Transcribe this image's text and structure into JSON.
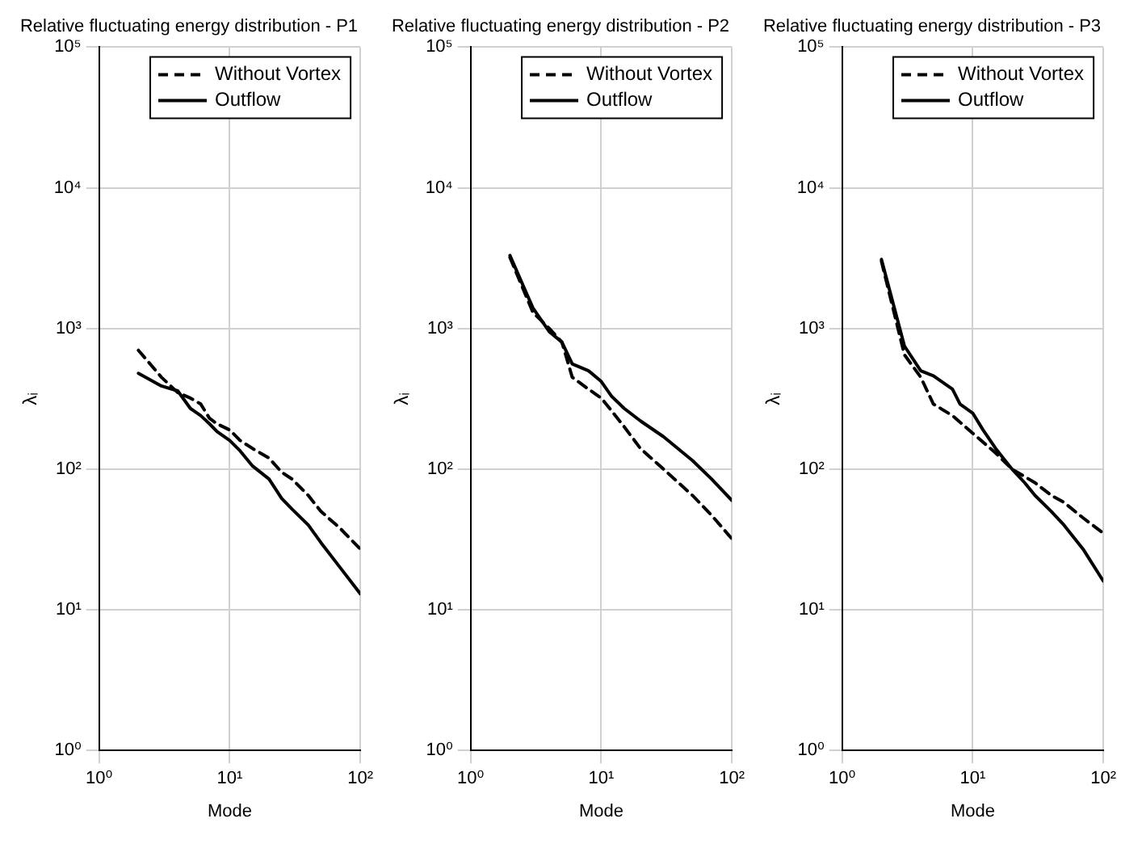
{
  "chart_data": [
    {
      "type": "line",
      "title": "Relative fluctuating energy distribution - P1",
      "xlabel": "Mode",
      "ylabel": "λᵢ",
      "log": "xy",
      "grid": true,
      "legend": "top right",
      "marker": "none",
      "xlim": [
        1,
        100
      ],
      "xticks": [
        {
          "value": 1,
          "label": "10⁰"
        },
        {
          "value": 10,
          "label": "10¹"
        },
        {
          "value": 100,
          "label": "10²"
        }
      ],
      "ylim": [
        1,
        100000
      ],
      "yticks": [
        {
          "value": 1,
          "label": "10⁰"
        },
        {
          "value": 10,
          "label": "10¹"
        },
        {
          "value": 100,
          "label": "10²"
        },
        {
          "value": 1000,
          "label": "10³"
        },
        {
          "value": 10000,
          "label": "10⁴"
        },
        {
          "value": 100000,
          "label": "10⁵"
        }
      ],
      "series": [
        {
          "name": "Without Vortex",
          "color": "#000000",
          "line_style": "dashed",
          "x": [
            2,
            3,
            4,
            5,
            6,
            7,
            8,
            10,
            12,
            15,
            20,
            25,
            30,
            40,
            50,
            70,
            100
          ],
          "values": [
            700,
            450,
            350,
            320,
            290,
            230,
            210,
            190,
            160,
            140,
            120,
            95,
            85,
            65,
            50,
            38,
            27
          ]
        },
        {
          "name": "Outflow",
          "color": "#000000",
          "line_style": "solid",
          "x": [
            2,
            3,
            4,
            5,
            6,
            7,
            8,
            10,
            12,
            15,
            20,
            25,
            30,
            40,
            50,
            70,
            100
          ],
          "values": [
            480,
            390,
            360,
            270,
            240,
            210,
            185,
            160,
            135,
            105,
            85,
            62,
            52,
            40,
            30,
            20,
            13
          ]
        }
      ]
    },
    {
      "type": "line",
      "title": "Relative fluctuating energy distribution - P2",
      "xlabel": "Mode",
      "ylabel": "λᵢ",
      "log": "xy",
      "grid": true,
      "legend": "top right",
      "marker": "none",
      "xlim": [
        1,
        100
      ],
      "xticks": [
        {
          "value": 1,
          "label": "10⁰"
        },
        {
          "value": 10,
          "label": "10¹"
        },
        {
          "value": 100,
          "label": "10²"
        }
      ],
      "ylim": [
        1,
        100000
      ],
      "yticks": [
        {
          "value": 1,
          "label": "10⁰"
        },
        {
          "value": 10,
          "label": "10¹"
        },
        {
          "value": 100,
          "label": "10²"
        },
        {
          "value": 1000,
          "label": "10³"
        },
        {
          "value": 10000,
          "label": "10⁴"
        },
        {
          "value": 100000,
          "label": "10⁵"
        }
      ],
      "series": [
        {
          "name": "Without Vortex",
          "color": "#000000",
          "line_style": "dashed",
          "x": [
            2,
            3,
            4,
            5,
            6,
            8,
            10,
            12,
            15,
            20,
            30,
            50,
            70,
            100
          ],
          "values": [
            3200,
            1300,
            1000,
            800,
            450,
            370,
            320,
            260,
            200,
            140,
            100,
            65,
            47,
            32
          ]
        },
        {
          "name": "Outflow",
          "color": "#000000",
          "line_style": "solid",
          "x": [
            2,
            3,
            4,
            5,
            6,
            8,
            10,
            12,
            15,
            20,
            30,
            50,
            70,
            100
          ],
          "values": [
            3300,
            1400,
            950,
            800,
            560,
            500,
            420,
            330,
            270,
            220,
            170,
            115,
            85,
            60
          ]
        }
      ]
    },
    {
      "type": "line",
      "title": "Relative fluctuating energy distribution - P3",
      "xlabel": "Mode",
      "ylabel": "λᵢ",
      "log": "xy",
      "grid": true,
      "legend": "top right",
      "marker": "none",
      "xlim": [
        1,
        100
      ],
      "xticks": [
        {
          "value": 1,
          "label": "10⁰"
        },
        {
          "value": 10,
          "label": "10¹"
        },
        {
          "value": 100,
          "label": "10²"
        }
      ],
      "ylim": [
        1,
        100000
      ],
      "yticks": [
        {
          "value": 1,
          "label": "10⁰"
        },
        {
          "value": 10,
          "label": "10¹"
        },
        {
          "value": 100,
          "label": "10²"
        },
        {
          "value": 1000,
          "label": "10³"
        },
        {
          "value": 10000,
          "label": "10⁴"
        },
        {
          "value": 100000,
          "label": "10⁵"
        }
      ],
      "series": [
        {
          "name": "Without Vortex",
          "color": "#000000",
          "line_style": "dashed",
          "x": [
            2,
            3,
            4,
            5,
            7,
            10,
            15,
            20,
            30,
            40,
            50,
            70,
            100
          ],
          "values": [
            3000,
            650,
            450,
            290,
            240,
            180,
            130,
            100,
            80,
            65,
            58,
            45,
            35
          ]
        },
        {
          "name": "Outflow",
          "color": "#000000",
          "line_style": "solid",
          "x": [
            2,
            3,
            4,
            5,
            7,
            8,
            10,
            12,
            15,
            20,
            25,
            30,
            40,
            50,
            70,
            100
          ],
          "values": [
            3100,
            750,
            500,
            460,
            370,
            290,
            250,
            190,
            140,
            100,
            80,
            65,
            50,
            40,
            27,
            16
          ]
        }
      ]
    }
  ]
}
